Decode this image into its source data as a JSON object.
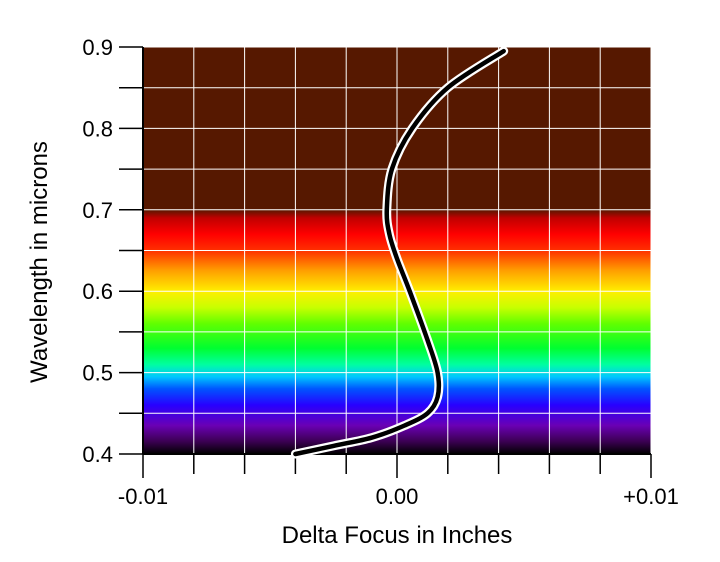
{
  "chart_data": {
    "type": "line",
    "title": "",
    "xlabel": "Delta Focus in Inches",
    "ylabel": "Wavelength in microns",
    "xlim": [
      -0.01,
      0.01
    ],
    "ylim": [
      0.4,
      0.9
    ],
    "x_tick_labels": [
      {
        "value": -0.01,
        "label": "-0.01"
      },
      {
        "value": 0.0,
        "label": "0.00"
      },
      {
        "value": 0.01,
        "label": "+0.01"
      }
    ],
    "y_tick_labels": [
      {
        "value": 0.4,
        "label": "0.4"
      },
      {
        "value": 0.5,
        "label": "0.5"
      },
      {
        "value": 0.6,
        "label": "0.6"
      },
      {
        "value": 0.7,
        "label": "0.7"
      },
      {
        "value": 0.8,
        "label": "0.8"
      },
      {
        "value": 0.9,
        "label": "0.9"
      }
    ],
    "grid": true,
    "background": "visible spectrum gradient by wavelength",
    "spectrum_colors": [
      {
        "wavelength": 0.4,
        "color": "#000000"
      },
      {
        "wavelength": 0.415,
        "color": "#3a0050"
      },
      {
        "wavelength": 0.435,
        "color": "#6a00b4"
      },
      {
        "wavelength": 0.46,
        "color": "#2800ff"
      },
      {
        "wavelength": 0.48,
        "color": "#0055ff"
      },
      {
        "wavelength": 0.495,
        "color": "#00c8ff"
      },
      {
        "wavelength": 0.51,
        "color": "#00ffa0"
      },
      {
        "wavelength": 0.53,
        "color": "#00ff30"
      },
      {
        "wavelength": 0.56,
        "color": "#60ff00"
      },
      {
        "wavelength": 0.58,
        "color": "#c8ff00"
      },
      {
        "wavelength": 0.6,
        "color": "#ffee00"
      },
      {
        "wavelength": 0.625,
        "color": "#ffa000"
      },
      {
        "wavelength": 0.65,
        "color": "#ff3000"
      },
      {
        "wavelength": 0.67,
        "color": "#ff0000"
      },
      {
        "wavelength": 0.69,
        "color": "#c00000"
      },
      {
        "wavelength": 0.7,
        "color": "#561800"
      },
      {
        "wavelength": 0.9,
        "color": "#561800"
      }
    ],
    "series": [
      {
        "color": "#000000",
        "outline_color": "#ffffff",
        "points": [
          {
            "x": -0.004,
            "y": 0.4
          },
          {
            "x": -0.0025,
            "y": 0.41
          },
          {
            "x": -0.001,
            "y": 0.42
          },
          {
            "x": 0.0003,
            "y": 0.435
          },
          {
            "x": 0.0012,
            "y": 0.45
          },
          {
            "x": 0.0016,
            "y": 0.47
          },
          {
            "x": 0.0016,
            "y": 0.5
          },
          {
            "x": 0.0012,
            "y": 0.54
          },
          {
            "x": 0.0005,
            "y": 0.6
          },
          {
            "x": 0.0,
            "y": 0.64
          },
          {
            "x": -0.0003,
            "y": 0.67
          },
          {
            "x": -0.0004,
            "y": 0.7
          },
          {
            "x": -0.0002,
            "y": 0.75
          },
          {
            "x": 0.0006,
            "y": 0.8
          },
          {
            "x": 0.002,
            "y": 0.85
          },
          {
            "x": 0.0042,
            "y": 0.895
          }
        ]
      }
    ]
  }
}
